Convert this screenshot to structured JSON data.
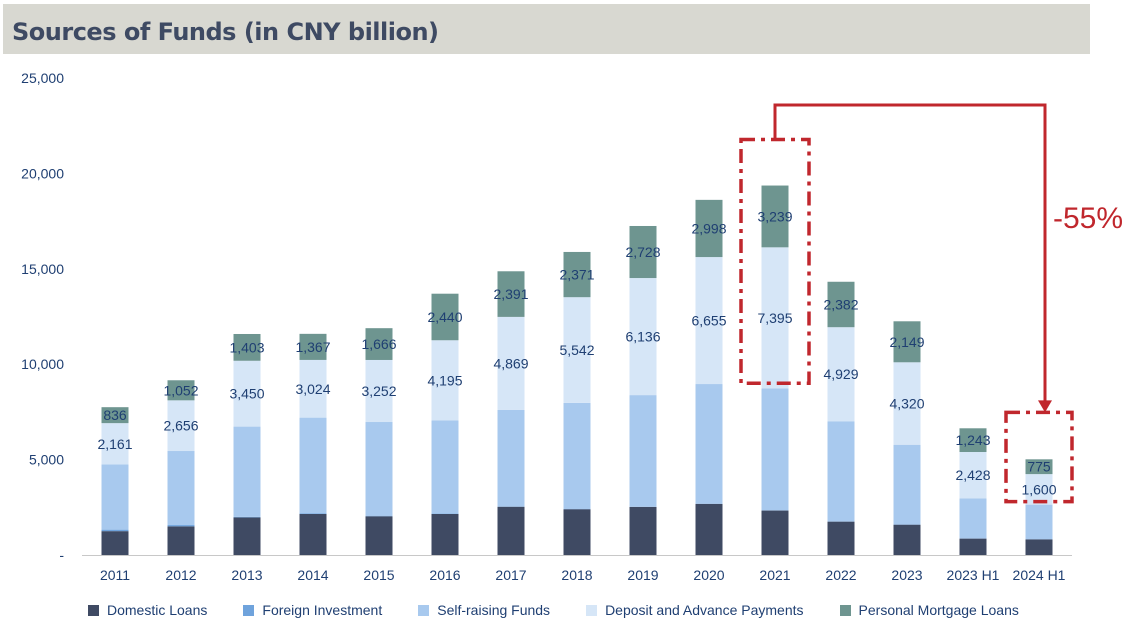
{
  "title": "Sources of Funds (in CNY billion)",
  "chart_data": {
    "type": "bar",
    "stacked": true,
    "title": "Sources of Funds (in CNY billion)",
    "xlabel": "",
    "ylabel": "",
    "ylim": [
      0,
      25000
    ],
    "yticks": [
      0,
      5000,
      10000,
      15000,
      20000,
      25000
    ],
    "ytick_labels": [
      "-",
      "5,000",
      "10,000",
      "15,000",
      "20,000",
      "25,000"
    ],
    "grid": false,
    "legend_position": "bottom",
    "categories": [
      "2011",
      "2012",
      "2013",
      "2014",
      "2015",
      "2016",
      "2017",
      "2018",
      "2019",
      "2020",
      "2021",
      "2022",
      "2023",
      "2023 H1",
      "2024 H1"
    ],
    "series": [
      {
        "name": "Domestic Loans",
        "color": "#3f4a63",
        "values": [
          1250,
          1500,
          1970,
          2150,
          2030,
          2150,
          2530,
          2400,
          2520,
          2680,
          2330,
          1750,
          1590,
          860,
          820
        ]
      },
      {
        "name": "Foreign Investment",
        "color": "#6fa3dc",
        "values": [
          80,
          70,
          30,
          40,
          30,
          20,
          20,
          10,
          10,
          10,
          10,
          10,
          10,
          10,
          10
        ]
      },
      {
        "name": "Self-raising Funds",
        "color": "#a8c9ee",
        "values": [
          3420,
          3880,
          4730,
          5010,
          4910,
          4890,
          5060,
          5560,
          5850,
          6270,
          6390,
          5250,
          4180,
          2100,
          1810
        ]
      },
      {
        "name": "Deposit and Advance Payments",
        "color": "#d6e6f7",
        "values": [
          2161,
          2656,
          3450,
          3024,
          3252,
          4195,
          4869,
          5542,
          6136,
          6655,
          7395,
          4929,
          4320,
          2428,
          1600
        ]
      },
      {
        "name": "Personal Mortgage Loans",
        "color": "#6e9590",
        "values": [
          836,
          1052,
          1403,
          1367,
          1666,
          2440,
          2391,
          2371,
          2728,
          2998,
          3239,
          2382,
          2149,
          1243,
          775
        ]
      }
    ],
    "data_labels": {
      "Deposit and Advance Payments": [
        "2,161",
        "2,656",
        "3,450",
        "3,024",
        "3,252",
        "4,195",
        "4,869",
        "5,542",
        "6,136",
        "6,655",
        "7,395",
        "4,929",
        "4,320",
        "2,428",
        "1,600"
      ],
      "Personal Mortgage Loans": [
        "836",
        "1,052",
        "1,403",
        "1,367",
        "1,666",
        "2,440",
        "2,391",
        "2,371",
        "2,728",
        "2,998",
        "3,239",
        "2,382",
        "2,149",
        "1,243",
        "775"
      ]
    },
    "annotations": [
      {
        "text": "-55%",
        "color": "#c0272d",
        "from_category": "2021",
        "to_category": "2024 H1"
      }
    ]
  }
}
